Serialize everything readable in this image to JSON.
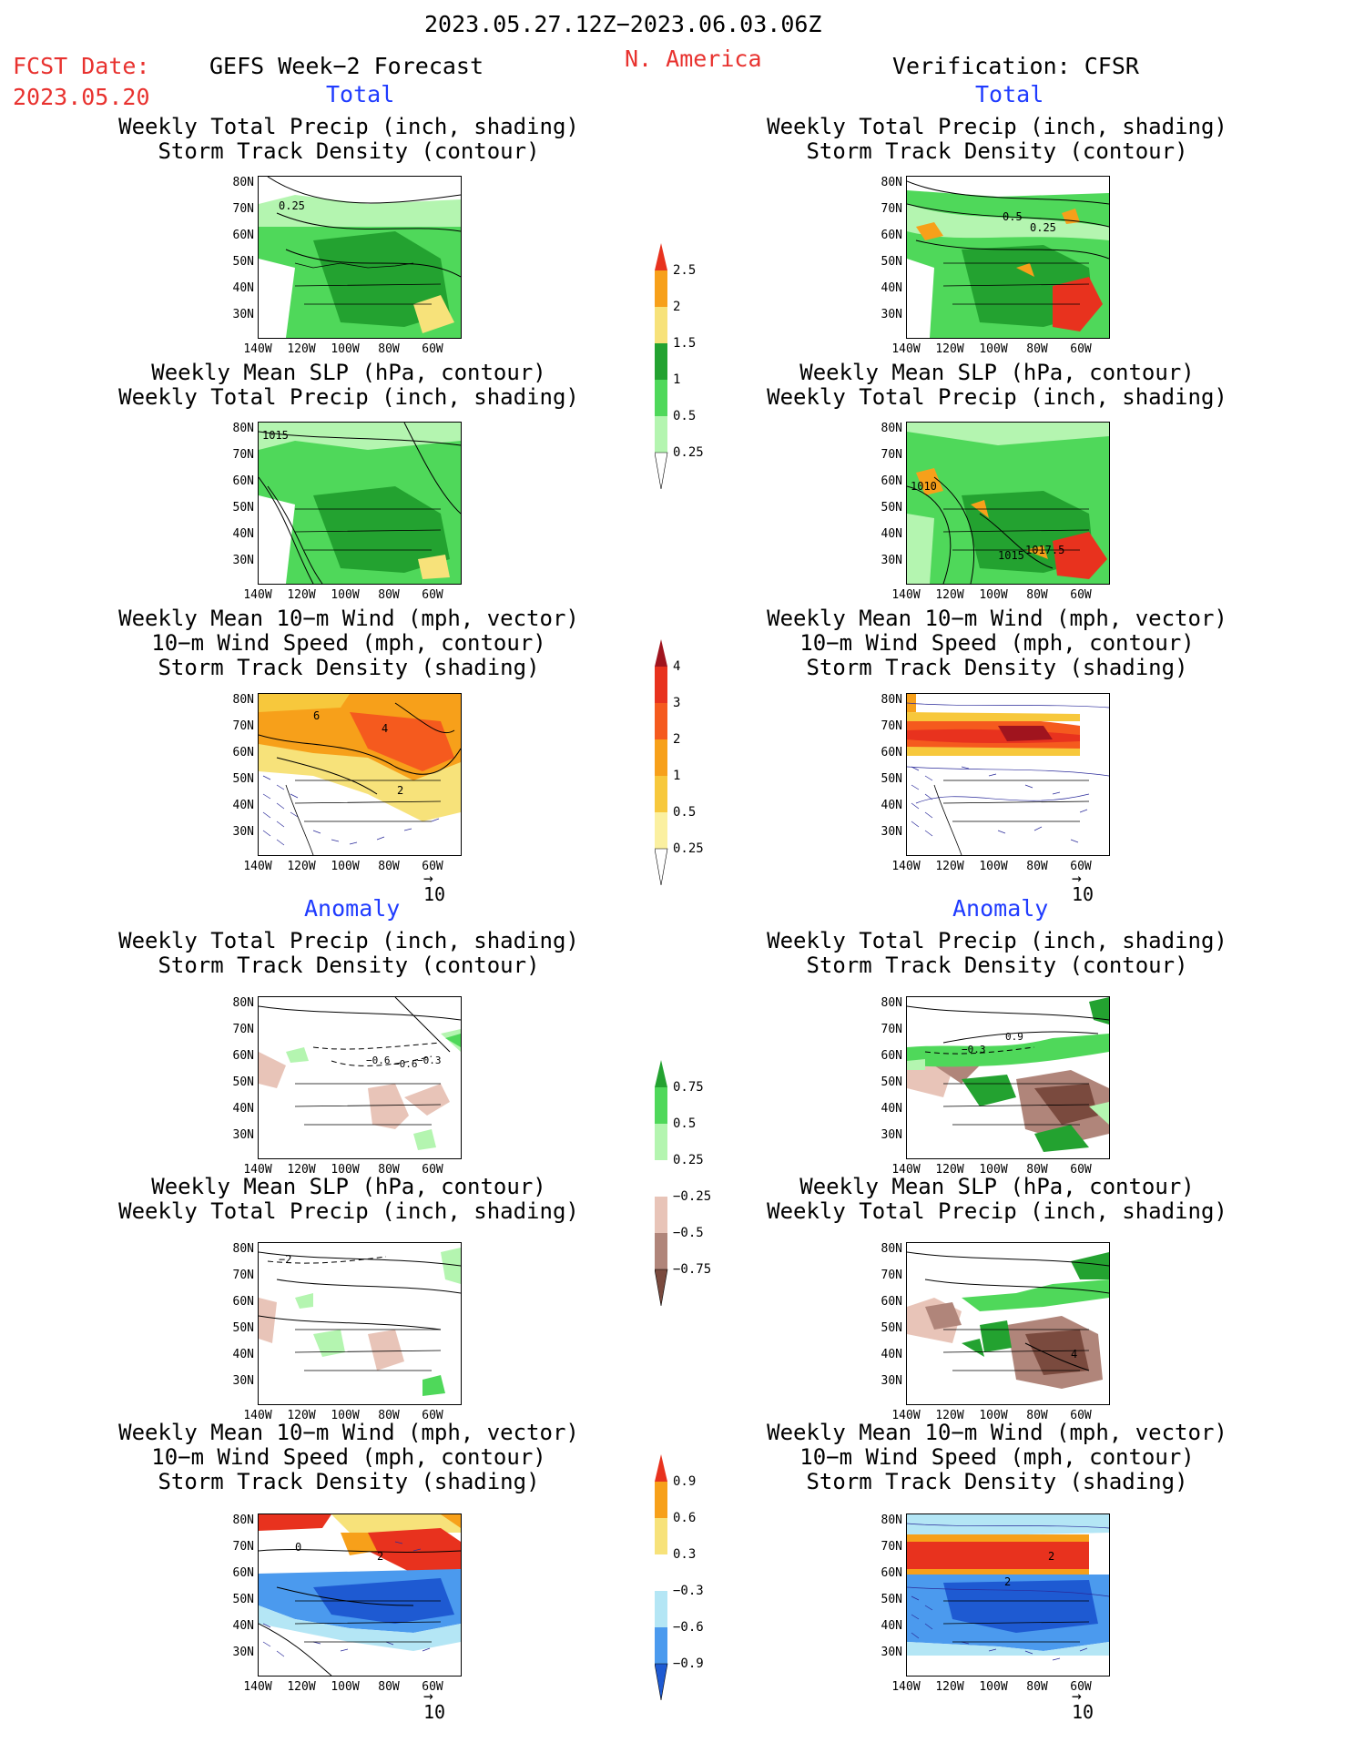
{
  "header": {
    "date_range": "2023.05.27.12Z−2023.06.03.06Z",
    "fcst_label": "FCST Date:",
    "fcst_date": "2023.05.20",
    "forecast_label": "GEFS Week−2 Forecast",
    "region": "N. America",
    "verification_label": "Verification: CFSR"
  },
  "sections": {
    "total": "Total",
    "anomaly": "Anomaly"
  },
  "panel_titles": {
    "precip_storm": [
      "Weekly Total Precip (inch, shading)",
      "Storm Track Density (contour)"
    ],
    "slp_precip": [
      "Weekly Mean SLP (hPa, contour)",
      "Weekly Total Precip (inch, shading)"
    ],
    "wind_storm": [
      "Weekly Mean 10−m Wind (mph, vector)",
      "10−m Wind Speed (mph, contour)",
      "Storm Track Density (shading)"
    ]
  },
  "axes": {
    "lat_ticks": [
      "80N",
      "70N",
      "60N",
      "50N",
      "40N",
      "30N"
    ],
    "lon_ticks": [
      "140W",
      "120W",
      "100W",
      "80W",
      "60W"
    ]
  },
  "vector_reference": "10",
  "contour_labels": {
    "fc_storm_total": "0.25",
    "obs_storm_total_a": "0.5",
    "obs_storm_total_b": "0.25",
    "fc_slp_total": "1015",
    "obs_slp_total_a": "1010",
    "obs_slp_total_b": "1015",
    "obs_slp_total_c": "1017.5",
    "fc_wind_total_a": "6",
    "fc_wind_total_b": "4",
    "fc_wind_total_c": "2",
    "fc_storm_anom_a": "−0.6",
    "fc_storm_anom_b": "−0.6",
    "fc_storm_anom_c": "−0.3",
    "obs_storm_anom_a": "0.9",
    "obs_storm_anom_b": "−0.3",
    "fc_slp_anom": "−2",
    "obs_slp_anom": "4",
    "fc_wind_anom_a": "0",
    "fc_wind_anom_b": "2",
    "obs_wind_anom_a": "2",
    "obs_wind_anom_b": "2"
  },
  "colorbars": {
    "precip_total": {
      "labels": [
        "2.5",
        "2",
        "1.5",
        "1",
        "0.5",
        "0.25"
      ],
      "colors": [
        "#e8321e",
        "#f7a01a",
        "#f7e27a",
        "#23a230",
        "#4fd85a",
        "#b4f5b0"
      ]
    },
    "storm_total": {
      "labels": [
        "4",
        "3",
        "2",
        "1",
        "0.5",
        "0.25"
      ],
      "colors": [
        "#a0141e",
        "#e8321e",
        "#f55a1e",
        "#f7a01a",
        "#f7c83c",
        "#fbf0a0"
      ]
    },
    "precip_anomaly": {
      "labels": [
        "0.75",
        "0.5",
        "0.25",
        "−0.25",
        "−0.5",
        "−0.75"
      ],
      "colors": [
        "#23a230",
        "#4fd85a",
        "#b4f5b0",
        "#ffffff",
        "#e8c4b8",
        "#b0857a",
        "#7a4a3e"
      ]
    },
    "storm_anomaly": {
      "labels": [
        "0.9",
        "0.6",
        "0.3",
        "−0.3",
        "−0.6",
        "−0.9"
      ],
      "colors": [
        "#e8321e",
        "#f7a01a",
        "#f7e27a",
        "#ffffff",
        "#b4e6f5",
        "#4b9aee",
        "#1e5ad2"
      ]
    }
  }
}
